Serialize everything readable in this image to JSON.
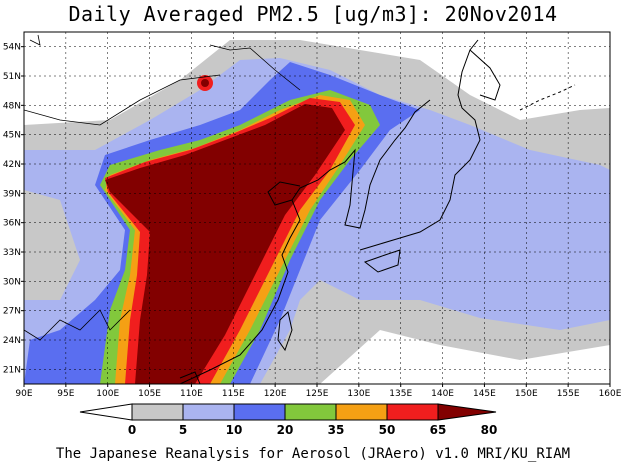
{
  "title": "Daily Averaged PM2.5 [ug/m3]: 20Nov2014",
  "footer": "The Japanese Reanalysis for Aerosol (JRAero) v1.0 MRI/KU_RIAM",
  "map": {
    "lon_range": [
      90,
      160
    ],
    "lat_range": [
      19.5,
      55.5
    ],
    "lon_ticks": [
      "90E",
      "95E",
      "100E",
      "105E",
      "110E",
      "115E",
      "120E",
      "125E",
      "130E",
      "135E",
      "140E",
      "145E",
      "150E",
      "155E",
      "160E"
    ],
    "lat_ticks": [
      "21N",
      "24N",
      "27N",
      "30N",
      "33N",
      "36N",
      "39N",
      "42N",
      "45N",
      "48N",
      "51N",
      "54N"
    ],
    "lon_values": [
      90,
      95,
      100,
      105,
      110,
      115,
      120,
      125,
      130,
      135,
      140,
      145,
      150,
      155,
      160
    ],
    "lat_values": [
      21,
      24,
      27,
      30,
      33,
      36,
      39,
      42,
      45,
      48,
      51,
      54
    ],
    "grid": true
  },
  "colorbar": {
    "labels": [
      "0",
      "5",
      "10",
      "20",
      "35",
      "50",
      "65",
      "80"
    ],
    "colors": [
      "#ffffff",
      "#c8c8c8",
      "#aab4f0",
      "#5a6ef0",
      "#82c83c",
      "#f5a014",
      "#f01e1e",
      "#820000"
    ]
  }
}
